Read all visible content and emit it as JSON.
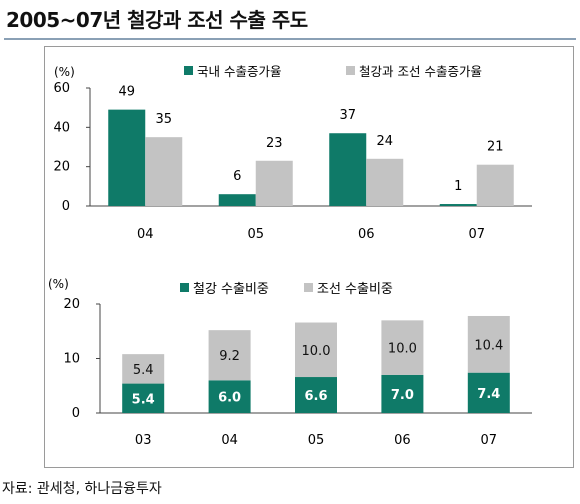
{
  "title": "2005~07년 철강과 조선 수출 주도",
  "source": "자료: 관세청, 하나금융투자",
  "colors": {
    "teal": "#0f7a68",
    "gray": "#c3c3c3"
  },
  "chart_data": [
    {
      "type": "bar",
      "ylabel": "(%)",
      "ylim": [
        0,
        60
      ],
      "yticks": [
        "0",
        "20",
        "40",
        "60"
      ],
      "categories": [
        "04",
        "05",
        "06",
        "07"
      ],
      "legend_position": "top",
      "series": [
        {
          "name": "국내 수출증가율",
          "color": "teal",
          "values": [
            49,
            6,
            37,
            1
          ]
        },
        {
          "name": "철강과 조선 수출증가율",
          "color": "gray",
          "values": [
            35,
            23,
            24,
            21
          ]
        }
      ]
    },
    {
      "type": "bar",
      "stacked": true,
      "ylabel": "(%)",
      "ylim": [
        0,
        20
      ],
      "yticks": [
        "0",
        "10",
        "20"
      ],
      "categories": [
        "03",
        "04",
        "05",
        "06",
        "07"
      ],
      "legend_position": "top",
      "series": [
        {
          "name": "철강 수출비중",
          "color": "teal",
          "values": [
            5.4,
            6.0,
            6.6,
            7.0,
            7.4
          ],
          "labels": [
            "5.4",
            "6.0",
            "6.6",
            "7.0",
            "7.4"
          ]
        },
        {
          "name": "조선 수출비중",
          "color": "gray",
          "values": [
            5.4,
            9.2,
            10.0,
            10.0,
            10.4
          ],
          "labels": [
            "5.4",
            "9.2",
            "10.0",
            "10.0",
            "10.4"
          ]
        }
      ]
    }
  ]
}
